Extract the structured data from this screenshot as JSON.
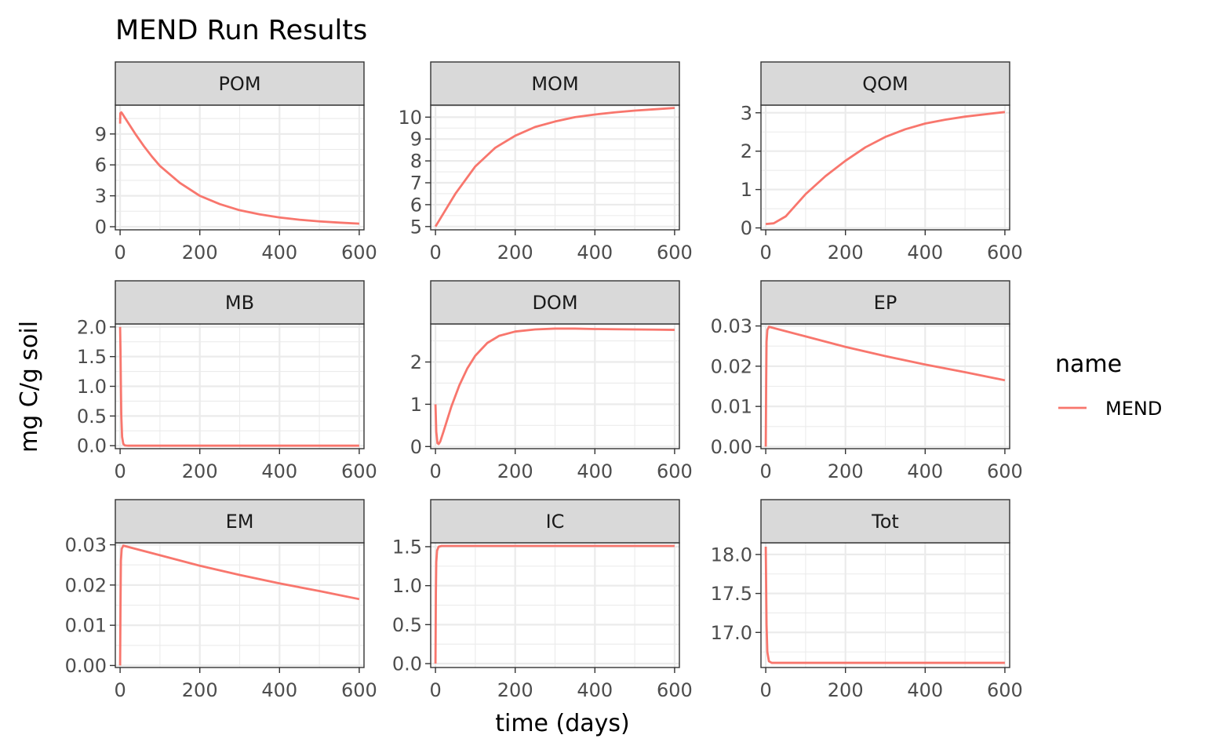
{
  "chart_data": {
    "type": "line",
    "title": "MEND Run Results",
    "xlabel": "time (days)",
    "ylabel": "mg C/g soil",
    "legend": {
      "title": "name",
      "position": "right",
      "entries": [
        {
          "name": "MEND",
          "color": "#F8766D"
        }
      ]
    },
    "grid": true,
    "facets": [
      {
        "name": "POM",
        "xlim": [
          -12,
          612
        ],
        "ylim": [
          -0.3,
          11.8
        ],
        "x_ticks": [
          0,
          200,
          400,
          600
        ],
        "y_ticks": [
          0,
          3,
          6,
          9
        ],
        "series": [
          {
            "name": "MEND",
            "x": [
              0,
              0.5,
              3,
              5,
              10,
              20,
              40,
              60,
              80,
              100,
              150,
              200,
              250,
              300,
              350,
              400,
              450,
              500,
              550,
              600
            ],
            "y": [
              10.0,
              11.0,
              11.1,
              11.0,
              10.7,
              10.1,
              8.9,
              7.8,
              6.8,
              5.9,
              4.25,
              3.0,
              2.2,
              1.6,
              1.2,
              0.9,
              0.68,
              0.52,
              0.4,
              0.3
            ]
          }
        ]
      },
      {
        "name": "MOM",
        "xlim": [
          -12,
          612
        ],
        "ylim": [
          4.85,
          10.55
        ],
        "x_ticks": [
          0,
          200,
          400,
          600
        ],
        "y_ticks": [
          5,
          6,
          7,
          8,
          9,
          10
        ],
        "series": [
          {
            "name": "MEND",
            "x": [
              0,
              20,
              50,
              100,
              150,
              200,
              250,
              300,
              350,
              400,
              450,
              500,
              550,
              600
            ],
            "y": [
              5.0,
              5.6,
              6.5,
              7.75,
              8.6,
              9.15,
              9.55,
              9.8,
              10.0,
              10.12,
              10.22,
              10.3,
              10.36,
              10.42
            ]
          }
        ]
      },
      {
        "name": "QOM",
        "xlim": [
          -12,
          612
        ],
        "ylim": [
          -0.05,
          3.2
        ],
        "x_ticks": [
          0,
          200,
          400,
          600
        ],
        "y_ticks": [
          0,
          1,
          2,
          3
        ],
        "series": [
          {
            "name": "MEND",
            "x": [
              0,
              20,
              50,
              100,
              150,
              200,
              250,
              300,
              350,
              400,
              450,
              500,
              550,
              600
            ],
            "y": [
              0.1,
              0.12,
              0.3,
              0.88,
              1.35,
              1.75,
              2.1,
              2.37,
              2.57,
              2.72,
              2.82,
              2.9,
              2.96,
              3.02
            ]
          }
        ]
      },
      {
        "name": "MB",
        "xlim": [
          -12,
          612
        ],
        "ylim": [
          -0.05,
          2.05
        ],
        "x_ticks": [
          0,
          200,
          400,
          600
        ],
        "y_ticks": [
          0.0,
          0.5,
          1.0,
          1.5,
          2.0
        ],
        "y_tick_labels": [
          "0.0",
          "0.5",
          "1.0",
          "1.5",
          "2.0"
        ],
        "series": [
          {
            "name": "MEND",
            "x": [
              0,
              1,
              2,
              3,
              5,
              8,
              12,
              20,
              600
            ],
            "y": [
              2.0,
              1.6,
              1.0,
              0.5,
              0.15,
              0.03,
              0.005,
              0.0,
              0.0
            ]
          }
        ]
      },
      {
        "name": "DOM",
        "xlim": [
          -12,
          612
        ],
        "ylim": [
          -0.05,
          2.9
        ],
        "x_ticks": [
          0,
          200,
          400,
          600
        ],
        "y_ticks": [
          0,
          1,
          2
        ],
        "series": [
          {
            "name": "MEND",
            "x": [
              0,
              2,
              5,
              8,
              12,
              20,
              40,
              60,
              80,
              100,
              130,
              160,
              200,
              250,
              300,
              350,
              400,
              450,
              500,
              550,
              600
            ],
            "y": [
              1.0,
              0.35,
              0.08,
              0.06,
              0.12,
              0.35,
              0.95,
              1.45,
              1.85,
              2.15,
              2.45,
              2.62,
              2.72,
              2.77,
              2.79,
              2.79,
              2.78,
              2.775,
              2.77,
              2.765,
              2.76
            ]
          }
        ]
      },
      {
        "name": "EP",
        "xlim": [
          -12,
          612
        ],
        "ylim": [
          -0.0005,
          0.0305
        ],
        "x_ticks": [
          0,
          200,
          400,
          600
        ],
        "y_ticks": [
          0.0,
          0.01,
          0.02,
          0.03
        ],
        "y_tick_labels": [
          "0.00",
          "0.01",
          "0.02",
          "0.03"
        ],
        "series": [
          {
            "name": "MEND",
            "x": [
              0,
              1,
              2,
              4,
              8,
              100,
              200,
              300,
              400,
              500,
              600
            ],
            "y": [
              0.0,
              0.015,
              0.026,
              0.029,
              0.0298,
              0.0274,
              0.0248,
              0.0225,
              0.0204,
              0.0185,
              0.0165
            ]
          }
        ]
      },
      {
        "name": "EM",
        "xlim": [
          -12,
          612
        ],
        "ylim": [
          -0.0005,
          0.0305
        ],
        "x_ticks": [
          0,
          200,
          400,
          600
        ],
        "y_ticks": [
          0.0,
          0.01,
          0.02,
          0.03
        ],
        "y_tick_labels": [
          "0.00",
          "0.01",
          "0.02",
          "0.03"
        ],
        "series": [
          {
            "name": "MEND",
            "x": [
              0,
              1,
              2,
              4,
              8,
              100,
              200,
              300,
              400,
              500,
              600
            ],
            "y": [
              0.0,
              0.015,
              0.026,
              0.029,
              0.0298,
              0.0274,
              0.0248,
              0.0225,
              0.0204,
              0.0185,
              0.0165
            ]
          }
        ]
      },
      {
        "name": "IC",
        "xlim": [
          -12,
          612
        ],
        "ylim": [
          -0.05,
          1.55
        ],
        "x_ticks": [
          0,
          200,
          400,
          600
        ],
        "y_ticks": [
          0.0,
          0.5,
          1.0,
          1.5
        ],
        "y_tick_labels": [
          "0.0",
          "0.5",
          "1.0",
          "1.5"
        ],
        "series": [
          {
            "name": "MEND",
            "x": [
              0,
              1,
              2,
              4,
              8,
              15,
              600
            ],
            "y": [
              0.0,
              0.9,
              1.3,
              1.45,
              1.5,
              1.51,
              1.51
            ]
          }
        ]
      },
      {
        "name": "Tot",
        "xlim": [
          -12,
          612
        ],
        "ylim": [
          16.55,
          18.15
        ],
        "x_ticks": [
          0,
          200,
          400,
          600
        ],
        "y_ticks": [
          17.0,
          17.5,
          18.0
        ],
        "y_tick_labels": [
          "17.0",
          "17.5",
          "18.0"
        ],
        "series": [
          {
            "name": "MEND",
            "x": [
              0,
              1,
              2,
              4,
              8,
              15,
              600
            ],
            "y": [
              18.1,
              17.6,
              17.1,
              16.75,
              16.63,
              16.61,
              16.61
            ]
          }
        ]
      }
    ]
  }
}
